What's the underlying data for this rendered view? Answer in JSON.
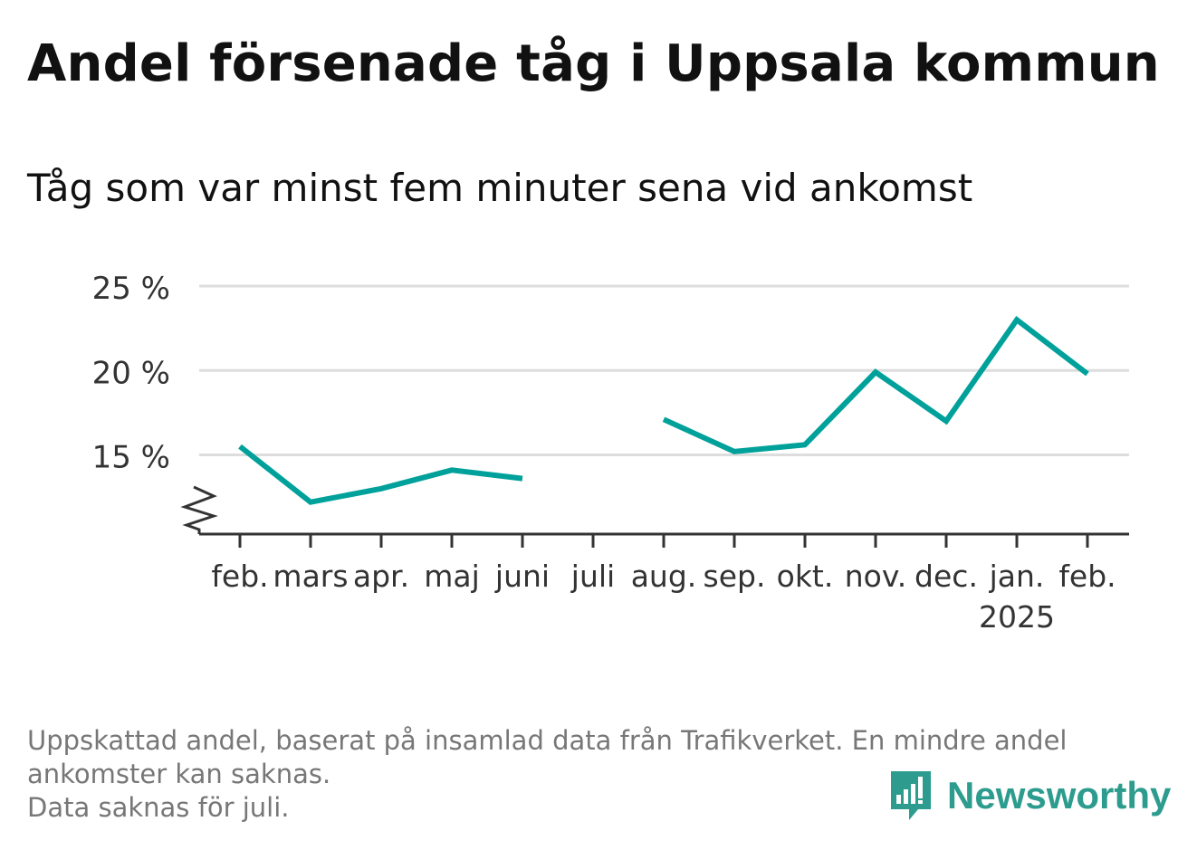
{
  "header": {
    "title": "Andel försenade tåg i Uppsala kommun",
    "subtitle": "Tåg som var minst fem minuter sena vid ankomst"
  },
  "chart_data": {
    "type": "line",
    "title": "Andel försenade tåg i Uppsala kommun",
    "subtitle": "Tåg som var minst fem minuter sena vid ankomst",
    "xlabel": "",
    "ylabel": "",
    "categories": [
      "feb.",
      "mars",
      "apr.",
      "maj",
      "juni",
      "juli",
      "aug.",
      "sep.",
      "okt.",
      "nov.",
      "dec.",
      "jan.",
      "feb."
    ],
    "year_labels": [
      "",
      "",
      "",
      "",
      "",
      "",
      "",
      "",
      "",
      "",
      "",
      "2025",
      ""
    ],
    "series": [
      {
        "values": [
          15.5,
          12.2,
          13.0,
          14.1,
          13.6,
          null,
          17.1,
          15.2,
          15.6,
          19.9,
          17.0,
          23.0,
          19.8
        ]
      }
    ],
    "yticks": [
      15,
      20,
      25
    ],
    "ytick_labels": [
      "15 %",
      "20 %",
      "25 %"
    ],
    "ylim": [
      10.3,
      25
    ],
    "axis_break": true,
    "grid": true,
    "legend": "none",
    "line_color": "#00a19a",
    "grid_color": "#dddddd",
    "axis_color": "#333333"
  },
  "footer": {
    "note_lines": [
      "Uppskattad andel, baserat på insamlad data från Trafikverket. En mindre andel",
      "ankomster kan saknas.",
      "Data saknas för juli."
    ],
    "brand": "Newsworthy",
    "brand_color": "#2d9c8e",
    "brand_icon": "bar-chart-badge-icon"
  }
}
